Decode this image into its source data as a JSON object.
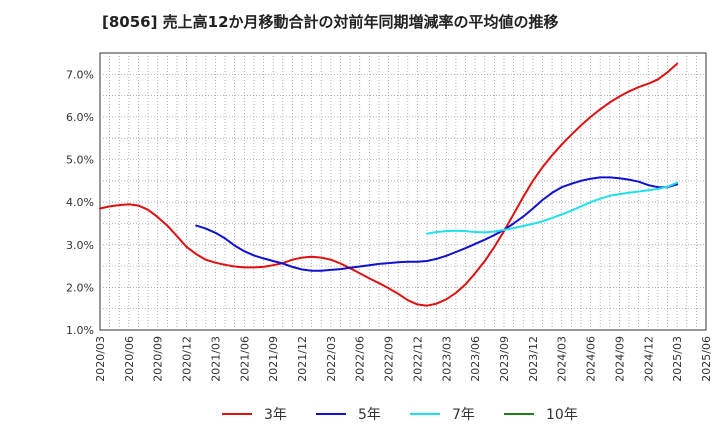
{
  "chart_data": {
    "type": "line",
    "title": "[8056]  売上高12か月移動合計の対前年同期増減率の平均値の推移",
    "xlabel": "",
    "ylabel": "",
    "ylim": [
      1.0,
      7.5
    ],
    "yticks": [
      "1.0%",
      "2.0%",
      "3.0%",
      "4.0%",
      "5.0%",
      "6.0%",
      "7.0%"
    ],
    "xticks": [
      "2020/03",
      "2020/06",
      "2020/09",
      "2020/12",
      "2021/03",
      "2021/06",
      "2021/09",
      "2021/12",
      "2022/03",
      "2022/06",
      "2022/09",
      "2022/12",
      "2023/03",
      "2023/06",
      "2023/09",
      "2023/12",
      "2024/03",
      "2024/06",
      "2024/09",
      "2024/12",
      "2025/03",
      "2025/06"
    ],
    "grid": true,
    "legend_position": "bottom",
    "series": [
      {
        "name": "3年",
        "color": "#e01010",
        "points": [
          [
            "2020/03",
            3.85
          ],
          [
            "2020/04",
            3.9
          ],
          [
            "2020/05",
            3.93
          ],
          [
            "2020/06",
            3.95
          ],
          [
            "2020/07",
            3.92
          ],
          [
            "2020/08",
            3.82
          ],
          [
            "2020/09",
            3.65
          ],
          [
            "2020/10",
            3.45
          ],
          [
            "2020/11",
            3.2
          ],
          [
            "2020/12",
            2.95
          ],
          [
            "2021/01",
            2.78
          ],
          [
            "2021/02",
            2.65
          ],
          [
            "2021/03",
            2.58
          ],
          [
            "2021/04",
            2.53
          ],
          [
            "2021/05",
            2.49
          ],
          [
            "2021/06",
            2.47
          ],
          [
            "2021/07",
            2.47
          ],
          [
            "2021/08",
            2.48
          ],
          [
            "2021/09",
            2.52
          ],
          [
            "2021/10",
            2.57
          ],
          [
            "2021/11",
            2.65
          ],
          [
            "2021/12",
            2.7
          ],
          [
            "2022/01",
            2.72
          ],
          [
            "2022/02",
            2.7
          ],
          [
            "2022/03",
            2.65
          ],
          [
            "2022/04",
            2.56
          ],
          [
            "2022/05",
            2.45
          ],
          [
            "2022/06",
            2.33
          ],
          [
            "2022/07",
            2.21
          ],
          [
            "2022/08",
            2.1
          ],
          [
            "2022/09",
            1.98
          ],
          [
            "2022/10",
            1.85
          ],
          [
            "2022/11",
            1.7
          ],
          [
            "2022/12",
            1.6
          ],
          [
            "2023/01",
            1.57
          ],
          [
            "2023/02",
            1.62
          ],
          [
            "2023/03",
            1.72
          ],
          [
            "2023/04",
            1.87
          ],
          [
            "2023/05",
            2.07
          ],
          [
            "2023/06",
            2.33
          ],
          [
            "2023/07",
            2.62
          ],
          [
            "2023/08",
            2.95
          ],
          [
            "2023/09",
            3.32
          ],
          [
            "2023/10",
            3.72
          ],
          [
            "2023/11",
            4.12
          ],
          [
            "2023/12",
            4.5
          ],
          [
            "2024/01",
            4.82
          ],
          [
            "2024/02",
            5.1
          ],
          [
            "2024/03",
            5.35
          ],
          [
            "2024/04",
            5.58
          ],
          [
            "2024/05",
            5.8
          ],
          [
            "2024/06",
            6.0
          ],
          [
            "2024/07",
            6.18
          ],
          [
            "2024/08",
            6.34
          ],
          [
            "2024/09",
            6.48
          ],
          [
            "2024/10",
            6.6
          ],
          [
            "2024/11",
            6.7
          ],
          [
            "2024/12",
            6.78
          ],
          [
            "2025/01",
            6.88
          ],
          [
            "2025/02",
            7.05
          ],
          [
            "2025/03",
            7.25
          ]
        ]
      },
      {
        "name": "5年",
        "color": "#1010d0",
        "points": [
          [
            "2021/01",
            3.45
          ],
          [
            "2021/02",
            3.38
          ],
          [
            "2021/03",
            3.28
          ],
          [
            "2021/04",
            3.15
          ],
          [
            "2021/05",
            2.98
          ],
          [
            "2021/06",
            2.85
          ],
          [
            "2021/07",
            2.75
          ],
          [
            "2021/08",
            2.68
          ],
          [
            "2021/09",
            2.62
          ],
          [
            "2021/10",
            2.56
          ],
          [
            "2021/11",
            2.48
          ],
          [
            "2021/12",
            2.42
          ],
          [
            "2022/01",
            2.39
          ],
          [
            "2022/02",
            2.39
          ],
          [
            "2022/03",
            2.41
          ],
          [
            "2022/04",
            2.43
          ],
          [
            "2022/05",
            2.46
          ],
          [
            "2022/06",
            2.49
          ],
          [
            "2022/07",
            2.52
          ],
          [
            "2022/08",
            2.55
          ],
          [
            "2022/09",
            2.57
          ],
          [
            "2022/10",
            2.59
          ],
          [
            "2022/11",
            2.6
          ],
          [
            "2022/12",
            2.6
          ],
          [
            "2023/01",
            2.62
          ],
          [
            "2023/02",
            2.67
          ],
          [
            "2023/03",
            2.74
          ],
          [
            "2023/04",
            2.83
          ],
          [
            "2023/05",
            2.92
          ],
          [
            "2023/06",
            3.02
          ],
          [
            "2023/07",
            3.12
          ],
          [
            "2023/08",
            3.23
          ],
          [
            "2023/09",
            3.35
          ],
          [
            "2023/10",
            3.5
          ],
          [
            "2023/11",
            3.66
          ],
          [
            "2023/12",
            3.85
          ],
          [
            "2024/01",
            4.05
          ],
          [
            "2024/02",
            4.22
          ],
          [
            "2024/03",
            4.35
          ],
          [
            "2024/04",
            4.43
          ],
          [
            "2024/05",
            4.5
          ],
          [
            "2024/06",
            4.55
          ],
          [
            "2024/07",
            4.58
          ],
          [
            "2024/08",
            4.58
          ],
          [
            "2024/09",
            4.56
          ],
          [
            "2024/10",
            4.53
          ],
          [
            "2024/11",
            4.48
          ],
          [
            "2024/12",
            4.4
          ],
          [
            "2025/01",
            4.35
          ],
          [
            "2025/02",
            4.35
          ],
          [
            "2025/03",
            4.42
          ]
        ]
      },
      {
        "name": "7年",
        "color": "#20e0f0",
        "points": [
          [
            "2023/01",
            3.26
          ],
          [
            "2023/02",
            3.3
          ],
          [
            "2023/03",
            3.32
          ],
          [
            "2023/04",
            3.33
          ],
          [
            "2023/05",
            3.32
          ],
          [
            "2023/06",
            3.3
          ],
          [
            "2023/07",
            3.29
          ],
          [
            "2023/08",
            3.31
          ],
          [
            "2023/09",
            3.35
          ],
          [
            "2023/10",
            3.39
          ],
          [
            "2023/11",
            3.44
          ],
          [
            "2023/12",
            3.49
          ],
          [
            "2024/01",
            3.55
          ],
          [
            "2024/02",
            3.63
          ],
          [
            "2024/03",
            3.71
          ],
          [
            "2024/04",
            3.8
          ],
          [
            "2024/05",
            3.9
          ],
          [
            "2024/06",
            4.0
          ],
          [
            "2024/07",
            4.08
          ],
          [
            "2024/08",
            4.15
          ],
          [
            "2024/09",
            4.19
          ],
          [
            "2024/10",
            4.22
          ],
          [
            "2024/11",
            4.25
          ],
          [
            "2024/12",
            4.28
          ],
          [
            "2025/01",
            4.31
          ],
          [
            "2025/02",
            4.36
          ],
          [
            "2025/03",
            4.46
          ]
        ]
      },
      {
        "name": "10年",
        "color": "#208020",
        "points": []
      }
    ]
  }
}
